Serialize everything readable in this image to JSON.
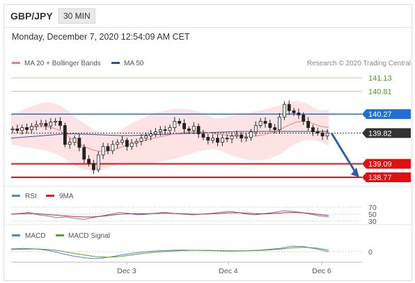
{
  "header": {
    "pair": "GBP/JPY",
    "timeframe": "30 MIN"
  },
  "timestamp": "Monday, December 7, 2020 12:54:09 AM CET",
  "chart_data": {
    "type": "line",
    "legend": {
      "ma20": "MA 20 + Bollinger Bands",
      "ma50": "MA 50",
      "credit": "Research © 2020 Trading Central"
    },
    "levels": [
      {
        "label": "141.13",
        "value": 141.13,
        "color": "#4d9a1f",
        "kind": "resistance-green"
      },
      {
        "label": "140.81",
        "value": 140.81,
        "color": "#4d9a1f",
        "kind": "resistance-green"
      },
      {
        "label": "140.27",
        "value": 140.27,
        "color": "#1f6fd6",
        "kind": "pivot"
      },
      {
        "label": "139.82",
        "value": 139.82,
        "color": "#333333",
        "kind": "last"
      },
      {
        "label": "139.09",
        "value": 139.09,
        "color": "#e01010",
        "kind": "support"
      },
      {
        "label": "138.77",
        "value": 138.77,
        "color": "#e01010",
        "kind": "support"
      }
    ],
    "x_ticks": [
      "Dec 3",
      "Dec 4",
      "Dec 6"
    ],
    "price_series": [
      139.92,
      139.88,
      139.95,
      139.9,
      139.98,
      140.02,
      140.05,
      139.99,
      140.08,
      140.1,
      140.0,
      139.55,
      139.6,
      139.7,
      139.48,
      139.2,
      139.1,
      138.95,
      139.3,
      139.5,
      139.4,
      139.55,
      139.6,
      139.65,
      139.5,
      139.58,
      139.62,
      139.7,
      139.75,
      139.8,
      139.85,
      139.9,
      139.88,
      139.95,
      140.1,
      140.05,
      139.92,
      139.88,
      139.98,
      139.8,
      139.72,
      139.65,
      139.7,
      139.6,
      139.7,
      139.68,
      139.75,
      139.78,
      139.7,
      139.72,
      139.85,
      140.0,
      140.1,
      140.05,
      139.95,
      139.9,
      140.2,
      140.5,
      140.35,
      140.3,
      140.25,
      140.1,
      139.95,
      139.85,
      139.82,
      139.75,
      139.82
    ],
    "ma20_series": [
      139.9,
      139.92,
      139.95,
      139.97,
      139.98,
      139.95,
      139.88,
      139.75,
      139.6,
      139.5,
      139.42,
      139.38,
      139.4,
      139.45,
      139.52,
      139.58,
      139.62,
      139.68,
      139.72,
      139.76,
      139.8,
      139.83,
      139.85,
      139.86,
      139.84,
      139.8,
      139.78,
      139.76,
      139.75,
      139.74,
      139.75,
      139.78,
      139.83,
      139.9,
      140.0,
      140.08,
      140.1,
      140.05,
      139.98,
      139.95
    ],
    "ma50_series": [
      139.7,
      139.72,
      139.74,
      139.76,
      139.78,
      139.8,
      139.8,
      139.79,
      139.78,
      139.77,
      139.76,
      139.76,
      139.77,
      139.78,
      139.79,
      139.8,
      139.81,
      139.82,
      139.83,
      139.84,
      139.85,
      139.86,
      139.86,
      139.86,
      139.86,
      139.86,
      139.86,
      139.86,
      139.86,
      139.86
    ],
    "forecast_arrow": {
      "from": 139.82,
      "to": 138.77
    },
    "rsi": {
      "legend": [
        "RSI",
        "9MA"
      ],
      "levels": [
        "70",
        "50",
        "30"
      ],
      "rsi_series": [
        50,
        52,
        55,
        48,
        45,
        40,
        42,
        38,
        35,
        40,
        45,
        50,
        55,
        52,
        48,
        50,
        53,
        55,
        52,
        50,
        48,
        50,
        52,
        55,
        58,
        55,
        50,
        48,
        52,
        55,
        60,
        58,
        55,
        50,
        45,
        42
      ],
      "ma_series": [
        50,
        51,
        52,
        51,
        49,
        47,
        45,
        43,
        42,
        42,
        44,
        47,
        50,
        51,
        51,
        51,
        52,
        53,
        52,
        51,
        50,
        50,
        51,
        52,
        54,
        54,
        53,
        51,
        51,
        52,
        54,
        55,
        54,
        52,
        49,
        46
      ]
    },
    "macd": {
      "legend": [
        "MACD",
        "MACD Signal"
      ],
      "levels": [
        "0"
      ],
      "macd_series": [
        0.1,
        0.12,
        0.1,
        0.05,
        -0.05,
        -0.15,
        -0.22,
        -0.25,
        -0.2,
        -0.12,
        -0.05,
        0.0,
        0.03,
        0.05,
        0.06,
        0.05,
        0.04,
        0.03,
        0.02,
        0.03,
        0.05,
        0.08,
        0.12,
        0.2,
        0.18,
        0.1,
        0.0
      ],
      "signal_series": [
        0.08,
        0.09,
        0.1,
        0.08,
        0.03,
        -0.05,
        -0.12,
        -0.18,
        -0.2,
        -0.17,
        -0.11,
        -0.05,
        -0.01,
        0.02,
        0.04,
        0.05,
        0.05,
        0.04,
        0.03,
        0.03,
        0.04,
        0.06,
        0.09,
        0.14,
        0.16,
        0.13,
        0.06
      ]
    },
    "colors": {
      "ma20": "#f08080",
      "band": "#fcd9d9",
      "ma50": "#2f4f8f",
      "candle": "#222222",
      "rsi": "#5b7fd6",
      "rsi_ma": "#e02020",
      "macd": "#5b7fd6",
      "signal": "#5aa02c",
      "arrow": "#2e5fa8"
    }
  }
}
